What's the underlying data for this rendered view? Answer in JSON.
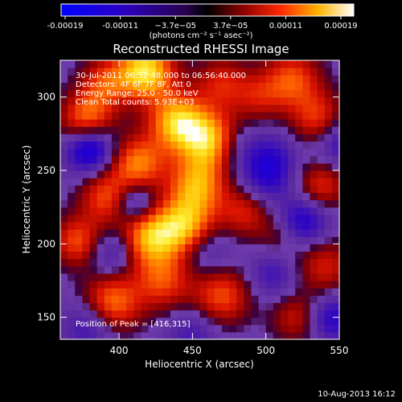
{
  "chart_data": {
    "type": "heatmap",
    "title": "Reconstructed RHESSI Image",
    "xlabel": "Heliocentric X (arcsec)",
    "ylabel": "Heliocentric Y (arcsec)",
    "xlim": [
      360,
      550
    ],
    "ylim": [
      135,
      325
    ],
    "x_ticks": [
      "400",
      "450",
      "500",
      "550"
    ],
    "y_ticks": [
      "150",
      "200",
      "250",
      "300"
    ],
    "x_tick_values": [
      400,
      450,
      500,
      550
    ],
    "y_tick_values": [
      150,
      200,
      250,
      300
    ],
    "colorbar": {
      "ticks": [
        "-0.00019",
        "-0.00011",
        "−3.7e−05",
        "3.7e−05",
        "0.00011",
        "0.00019"
      ],
      "units_label": "(photons cm⁻² s⁻¹ asec⁻²)",
      "range": [
        -0.00019,
        0.00019
      ]
    },
    "annotations": [
      "30-Jul-2011 06:52:48.000 to 06:56:40.000",
      "Detectors: 4F 6F 7F 8F, Att 0",
      "Energy Range: 25.0 - 50.0 keV",
      "Clean     Total counts: 5.93E+03"
    ],
    "peak_label": "Position of Peak = [416,315]",
    "peak": [
      416,
      315
    ],
    "sources": [
      [
        418,
        318,
        14,
        1.0
      ],
      [
        440,
        283,
        14,
        0.9
      ],
      [
        463,
        270,
        14,
        0.85
      ],
      [
        453,
        240,
        14,
        0.75
      ],
      [
        445,
        212,
        14,
        0.8
      ],
      [
        420,
        205,
        14,
        0.8
      ],
      [
        413,
        255,
        13,
        0.7
      ],
      [
        392,
        232,
        13,
        0.6
      ],
      [
        378,
        285,
        13,
        0.7
      ],
      [
        372,
        202,
        12,
        0.6
      ],
      [
        395,
        160,
        14,
        0.7
      ],
      [
        430,
        175,
        14,
        0.55
      ],
      [
        470,
        165,
        14,
        0.6
      ],
      [
        485,
        222,
        12,
        0.45
      ],
      [
        518,
        312,
        14,
        0.6
      ],
      [
        536,
        285,
        13,
        0.55
      ],
      [
        538,
        240,
        12,
        0.5
      ],
      [
        540,
        185,
        14,
        0.45
      ],
      [
        520,
        150,
        12,
        0.4
      ],
      [
        495,
        300,
        12,
        0.35
      ],
      [
        505,
        260,
        12,
        -0.3
      ],
      [
        510,
        205,
        12,
        0.3
      ],
      [
        390,
        310,
        12,
        0.5
      ],
      [
        470,
        310,
        13,
        0.45
      ],
      [
        380,
        265,
        11,
        -0.8
      ],
      [
        395,
        195,
        11,
        -0.4
      ],
      [
        410,
        228,
        10,
        -0.5
      ],
      [
        460,
        195,
        12,
        -0.3
      ],
      [
        480,
        265,
        12,
        -0.3
      ],
      [
        500,
        245,
        12,
        -0.4
      ],
      [
        525,
        215,
        12,
        -0.6
      ],
      [
        545,
        150,
        11,
        -0.5
      ],
      [
        550,
        270,
        12,
        -0.45
      ],
      [
        380,
        145,
        12,
        -0.4
      ],
      [
        450,
        140,
        12,
        -0.3
      ],
      [
        505,
        180,
        12,
        -0.35
      ]
    ]
  },
  "footer": "10-Aug-2013 16:12"
}
